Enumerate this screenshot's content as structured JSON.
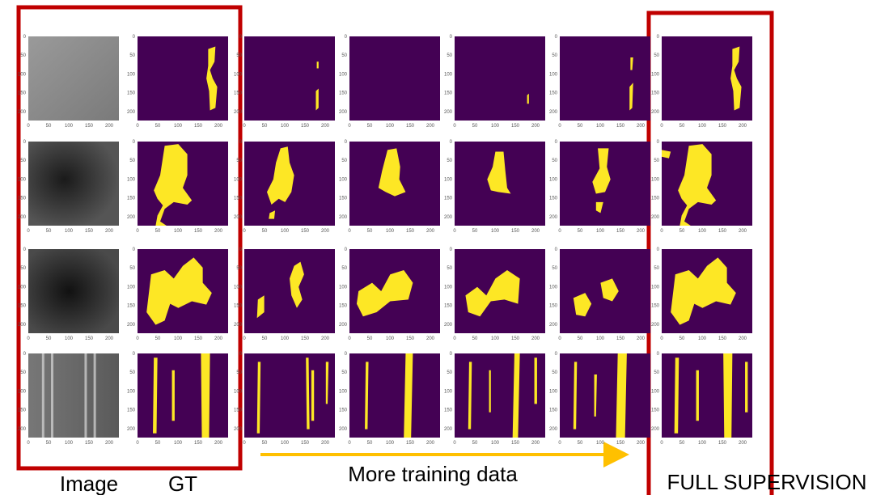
{
  "labels": {
    "image": "Image",
    "gt": "GT",
    "more_data": "More training data",
    "full": "FULL SUPERVISION"
  },
  "axis": {
    "ticks": [
      0,
      50,
      100,
      150,
      200
    ],
    "lim": [
      0,
      224
    ]
  }
}
